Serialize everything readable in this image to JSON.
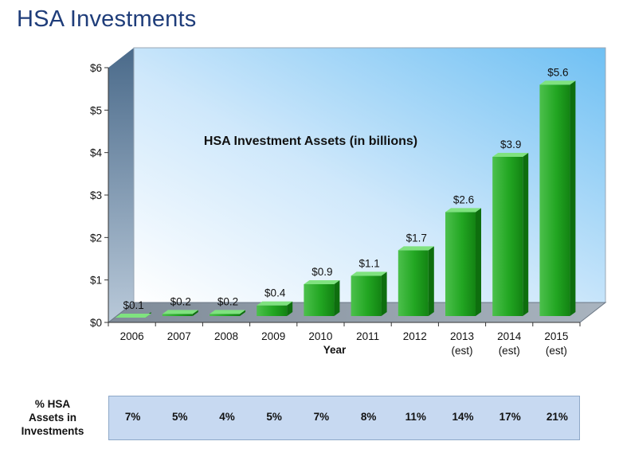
{
  "page": {
    "title": "HSA Investments"
  },
  "chart_data": {
    "type": "bar",
    "title": "HSA Investment Assets (in billions)",
    "xlabel": "Year",
    "ylabel": "",
    "ylim": [
      0,
      6
    ],
    "yticks": [
      "$0",
      "$1",
      "$2",
      "$3",
      "$4",
      "$5",
      "$6"
    ],
    "grid": false,
    "categories": [
      {
        "year": "2006",
        "note": ""
      },
      {
        "year": "2007",
        "note": ""
      },
      {
        "year": "2008",
        "note": ""
      },
      {
        "year": "2009",
        "note": ""
      },
      {
        "year": "2010",
        "note": ""
      },
      {
        "year": "2011",
        "note": ""
      },
      {
        "year": "2012",
        "note": ""
      },
      {
        "year": "2013",
        "note": "(est)"
      },
      {
        "year": "2014",
        "note": "(est)"
      },
      {
        "year": "2015",
        "note": "(est)"
      }
    ],
    "values": [
      0.1,
      0.2,
      0.2,
      0.4,
      0.9,
      1.1,
      1.7,
      2.6,
      3.9,
      5.6
    ],
    "labels": [
      "$0.1",
      "$0.2",
      "$0.2",
      "$0.4",
      "$0.9",
      "$1.1",
      "$1.7",
      "$2.6",
      "$3.9",
      "$5.6"
    ],
    "colors": {
      "bar_front": "#22a622",
      "bar_top": "#7fe27f",
      "bar_side": "#0e6e0e"
    }
  },
  "percent_table": {
    "header": [
      "% HSA",
      "Assets in",
      "Investments"
    ],
    "values": [
      "7%",
      "5%",
      "4%",
      "5%",
      "7%",
      "8%",
      "11%",
      "14%",
      "17%",
      "21%"
    ]
  }
}
